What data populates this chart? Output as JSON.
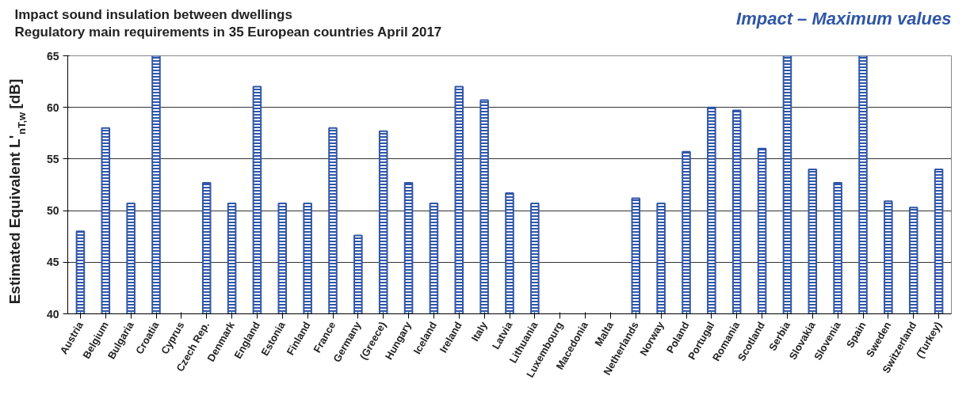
{
  "chart_data": {
    "type": "bar",
    "title": "Impact sound insulation between dwellings\nRegulatory main requirements in 35 European countries April 2017",
    "ylabel": "Estimated Equivalent L'$_{nT,w}$ [dB]",
    "annotations": [
      "Impact – Maximum values"
    ],
    "categories": [
      "Austria",
      "Belgium",
      "Bulgaria",
      "Croatia",
      "Cyprus",
      "Czech Rep.",
      "Denmark",
      "England",
      "Estonia",
      "Finland",
      "France",
      "Germany",
      "(Greece)",
      "Hungary",
      "Iceland",
      "Ireland",
      "Italy",
      "Latvia",
      "Lithuania",
      "Luxembourg",
      "Macedonia",
      "Malta",
      "Netherlands",
      "Norway",
      "Poland",
      "Portugal",
      "Romania",
      "Scotland",
      "Serbia",
      "Slovakia",
      "Slovenia",
      "Spain",
      "Sweden",
      "Switzerland",
      "(Turkey)"
    ],
    "series": [
      {
        "color": "#2f56a8",
        "values": [
          48.0,
          58.0,
          50.7,
          65,
          null,
          52.7,
          50.7,
          62.0,
          50.7,
          50.7,
          58.0,
          47.6,
          57.7,
          52.7,
          50.7,
          62.0,
          60.7,
          51.7,
          50.7,
          null,
          null,
          null,
          51.2,
          50.7,
          55.7,
          60.0,
          59.7,
          56.0,
          65,
          54.0,
          52.7,
          65,
          50.9,
          50.3,
          54.0
        ]
      }
    ],
    "ylim": [
      40,
      65
    ],
    "yticks": [
      40,
      45,
      50,
      55,
      60,
      65
    ],
    "grid": "y"
  }
}
